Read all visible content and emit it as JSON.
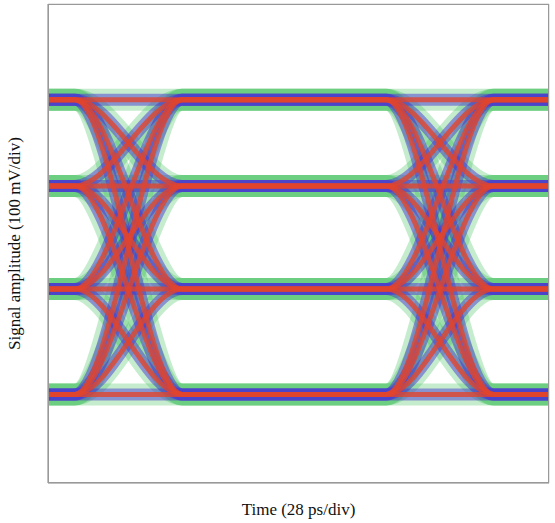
{
  "chart_data": {
    "type": "line",
    "x_label": "Time (28 ps/div)",
    "y_label": "Signal amplitude (100 mV/div)",
    "x": [
      0,
      15,
      75,
      189,
      249,
      280
    ],
    "series": [
      {
        "values": [
          300,
          300,
          300,
          300,
          300,
          300
        ]
      },
      {
        "values": [
          300,
          300,
          120,
          120,
          120,
          120
        ]
      },
      {
        "values": [
          300,
          300,
          -95,
          -95,
          -95,
          -95
        ]
      },
      {
        "values": [
          300,
          300,
          -315,
          -315,
          -315,
          -315
        ]
      },
      {
        "values": [
          120,
          120,
          300,
          300,
          120,
          120
        ]
      },
      {
        "values": [
          120,
          120,
          120,
          120,
          -95,
          -95
        ]
      },
      {
        "values": [
          120,
          120,
          -95,
          -95,
          -315,
          -315
        ]
      },
      {
        "values": [
          120,
          120,
          -315,
          -315,
          300,
          300
        ]
      },
      {
        "values": [
          -95,
          -95,
          300,
          300,
          -95,
          -95
        ]
      },
      {
        "values": [
          -95,
          -95,
          120,
          120,
          -315,
          -315
        ]
      },
      {
        "values": [
          -95,
          -95,
          -95,
          -95,
          300,
          300
        ]
      },
      {
        "values": [
          -95,
          -95,
          -315,
          -315,
          120,
          120
        ]
      },
      {
        "values": [
          -315,
          -315,
          300,
          300,
          -315,
          -315
        ]
      },
      {
        "values": [
          -315,
          -315,
          120,
          120,
          300,
          300
        ]
      },
      {
        "values": [
          -315,
          -315,
          -95,
          -95,
          120,
          120
        ]
      },
      {
        "values": [
          -315,
          -315,
          -315,
          -315,
          -95,
          -95
        ]
      }
    ],
    "color": "#e0452d",
    "xlim": [
      0,
      280
    ],
    "xticks": [
      0,
      28,
      56,
      84,
      112,
      140,
      168,
      196,
      224,
      252,
      280
    ],
    "ylim": [
      -500,
      500
    ],
    "yticks": [
      -500,
      -400,
      -300,
      -200,
      -100,
      0,
      100,
      200,
      300,
      400,
      500
    ],
    "grid": true,
    "tick_labels": false
  }
}
